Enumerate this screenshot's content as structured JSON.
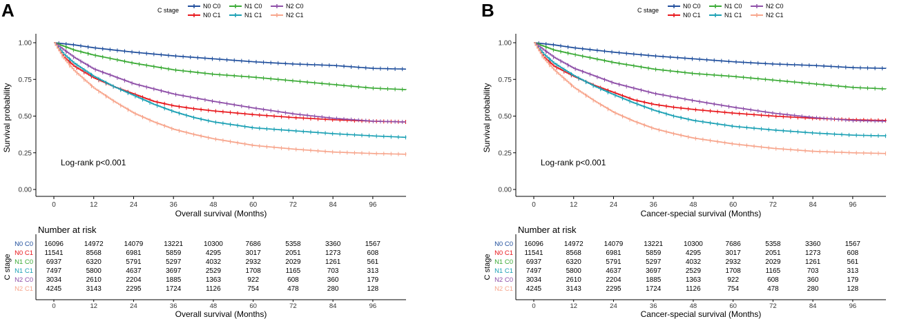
{
  "colors": {
    "N0 C0": "#1f4e9c",
    "N0 C1": "#e8161b",
    "N1 C0": "#3aaa35",
    "N1 C1": "#1aa0b4",
    "N2 C0": "#8e4fa8",
    "N2 C1": "#f7a58c"
  },
  "legend": {
    "title": "C stage",
    "labels": [
      "N0 C0",
      "N1 C0",
      "N2 C0",
      "N0 C1",
      "N1 C1",
      "N2 C1"
    ]
  },
  "chart_data": [
    {
      "type": "line",
      "panel_letter": "A",
      "title": "",
      "xlabel": "Overall survival (Months)",
      "ylabel": "Survival probability",
      "xlim": [
        0,
        106
      ],
      "ylim": [
        0,
        1
      ],
      "x_ticks": [
        0,
        12,
        24,
        36,
        48,
        60,
        72,
        84,
        96
      ],
      "y_ticks": [
        "0.00",
        "0.25",
        "0.50",
        "0.75",
        "1.00"
      ],
      "annotation": "Log-rank p<0.001",
      "series": [
        {
          "name": "N0 C0",
          "x": [
            0,
            6,
            12,
            24,
            36,
            48,
            60,
            72,
            84,
            96,
            106
          ],
          "values": [
            1.0,
            0.985,
            0.965,
            0.935,
            0.91,
            0.89,
            0.87,
            0.855,
            0.845,
            0.825,
            0.82
          ]
        },
        {
          "name": "N0 C1",
          "x": [
            0,
            3,
            6,
            12,
            18,
            24,
            30,
            36,
            42,
            48,
            60,
            72,
            84,
            96,
            106
          ],
          "values": [
            1.0,
            0.9,
            0.84,
            0.76,
            0.7,
            0.65,
            0.6,
            0.57,
            0.55,
            0.535,
            0.51,
            0.49,
            0.475,
            0.465,
            0.46
          ]
        },
        {
          "name": "N1 C0",
          "x": [
            0,
            6,
            12,
            24,
            36,
            48,
            60,
            72,
            84,
            96,
            106
          ],
          "values": [
            1.0,
            0.95,
            0.915,
            0.86,
            0.815,
            0.785,
            0.765,
            0.74,
            0.715,
            0.69,
            0.68
          ]
        },
        {
          "name": "N1 C1",
          "x": [
            0,
            3,
            6,
            12,
            18,
            24,
            30,
            36,
            42,
            48,
            60,
            72,
            84,
            96,
            106
          ],
          "values": [
            1.0,
            0.92,
            0.86,
            0.77,
            0.7,
            0.64,
            0.58,
            0.53,
            0.49,
            0.46,
            0.42,
            0.4,
            0.38,
            0.365,
            0.355
          ]
        },
        {
          "name": "N2 C0",
          "x": [
            0,
            6,
            12,
            24,
            36,
            48,
            60,
            72,
            84,
            96,
            106
          ],
          "values": [
            1.0,
            0.9,
            0.82,
            0.72,
            0.65,
            0.6,
            0.555,
            0.515,
            0.485,
            0.465,
            0.46
          ]
        },
        {
          "name": "N2 C1",
          "x": [
            0,
            3,
            6,
            12,
            18,
            24,
            30,
            36,
            42,
            48,
            60,
            72,
            84,
            96,
            106
          ],
          "values": [
            1.0,
            0.89,
            0.81,
            0.69,
            0.6,
            0.52,
            0.46,
            0.41,
            0.375,
            0.345,
            0.3,
            0.275,
            0.255,
            0.245,
            0.24
          ]
        }
      ],
      "risk_table": {
        "title": "Number at risk",
        "ylabel": "C stage",
        "xlabel": "Overall survival (Months)",
        "rows": [
          {
            "name": "N0 C0",
            "values": [
              "16096",
              "14972",
              "14079",
              "13221",
              "10300",
              "7686",
              "5358",
              "3360",
              "1567"
            ]
          },
          {
            "name": "N0 C1",
            "values": [
              "11541",
              "8568",
              "6981",
              "5859",
              "4295",
              "3017",
              "2051",
              "1273",
              "608"
            ]
          },
          {
            "name": "N1 C0",
            "values": [
              "6937",
              "6320",
              "5791",
              "5297",
              "4032",
              "2932",
              "2029",
              "1261",
              "561"
            ]
          },
          {
            "name": "N1 C1",
            "values": [
              "7497",
              "5800",
              "4637",
              "3697",
              "2529",
              "1708",
              "1165",
              "703",
              "313"
            ]
          },
          {
            "name": "N2 C0",
            "values": [
              "3034",
              "2610",
              "2204",
              "1885",
              "1363",
              "922",
              "608",
              "360",
              "179"
            ]
          },
          {
            "name": "N2 C1",
            "values": [
              "4245",
              "3143",
              "2295",
              "1724",
              "1126",
              "754",
              "478",
              "280",
              "128"
            ]
          }
        ]
      }
    },
    {
      "type": "line",
      "panel_letter": "B",
      "title": "",
      "xlabel": "Cancer-special survival (Months)",
      "ylabel": "Survival probability",
      "xlim": [
        0,
        106
      ],
      "ylim": [
        0,
        1
      ],
      "x_ticks": [
        0,
        12,
        24,
        36,
        48,
        60,
        72,
        84,
        96
      ],
      "y_ticks": [
        "0.00",
        "0.25",
        "0.50",
        "0.75",
        "1.00"
      ],
      "annotation": "Log-rank p<0.001",
      "series": [
        {
          "name": "N0 C0",
          "x": [
            0,
            6,
            12,
            24,
            36,
            48,
            60,
            72,
            84,
            96,
            106
          ],
          "values": [
            1.0,
            0.985,
            0.965,
            0.935,
            0.91,
            0.89,
            0.87,
            0.855,
            0.845,
            0.83,
            0.825
          ]
        },
        {
          "name": "N0 C1",
          "x": [
            0,
            3,
            6,
            12,
            18,
            24,
            30,
            36,
            42,
            48,
            60,
            72,
            84,
            96,
            106
          ],
          "values": [
            1.0,
            0.9,
            0.84,
            0.77,
            0.71,
            0.66,
            0.61,
            0.58,
            0.56,
            0.545,
            0.52,
            0.5,
            0.485,
            0.475,
            0.47
          ]
        },
        {
          "name": "N1 C0",
          "x": [
            0,
            6,
            12,
            24,
            36,
            48,
            60,
            72,
            84,
            96,
            106
          ],
          "values": [
            1.0,
            0.95,
            0.92,
            0.865,
            0.82,
            0.79,
            0.77,
            0.745,
            0.72,
            0.695,
            0.685
          ]
        },
        {
          "name": "N1 C1",
          "x": [
            0,
            3,
            6,
            12,
            18,
            24,
            30,
            36,
            42,
            48,
            60,
            72,
            84,
            96,
            106
          ],
          "values": [
            1.0,
            0.92,
            0.86,
            0.775,
            0.705,
            0.645,
            0.59,
            0.54,
            0.5,
            0.47,
            0.43,
            0.405,
            0.385,
            0.37,
            0.365
          ]
        },
        {
          "name": "N2 C0",
          "x": [
            0,
            6,
            12,
            24,
            36,
            48,
            60,
            72,
            84,
            96,
            106
          ],
          "values": [
            1.0,
            0.9,
            0.825,
            0.725,
            0.655,
            0.605,
            0.56,
            0.52,
            0.49,
            0.47,
            0.465
          ]
        },
        {
          "name": "N2 C1",
          "x": [
            0,
            3,
            6,
            12,
            18,
            24,
            30,
            36,
            42,
            48,
            60,
            72,
            84,
            96,
            106
          ],
          "values": [
            1.0,
            0.89,
            0.815,
            0.695,
            0.605,
            0.525,
            0.465,
            0.415,
            0.38,
            0.35,
            0.31,
            0.28,
            0.26,
            0.25,
            0.245
          ]
        }
      ],
      "risk_table": {
        "title": "Number at risk",
        "ylabel": "C stage",
        "xlabel": "Cancer-special survival (Months)",
        "rows": [
          {
            "name": "N0 C0",
            "values": [
              "16096",
              "14972",
              "14079",
              "13221",
              "10300",
              "7686",
              "5358",
              "3360",
              "1567"
            ]
          },
          {
            "name": "N0 C1",
            "values": [
              "11541",
              "8568",
              "6981",
              "5859",
              "4295",
              "3017",
              "2051",
              "1273",
              "608"
            ]
          },
          {
            "name": "N1 C0",
            "values": [
              "6937",
              "6320",
              "5791",
              "5297",
              "4032",
              "2932",
              "2029",
              "1261",
              "561"
            ]
          },
          {
            "name": "N1 C1",
            "values": [
              "7497",
              "5800",
              "4637",
              "3697",
              "2529",
              "1708",
              "1165",
              "703",
              "313"
            ]
          },
          {
            "name": "N2 C0",
            "values": [
              "3034",
              "2610",
              "2204",
              "1885",
              "1363",
              "922",
              "608",
              "360",
              "179"
            ]
          },
          {
            "name": "N2 C1",
            "values": [
              "4245",
              "3143",
              "2295",
              "1724",
              "1126",
              "754",
              "478",
              "280",
              "128"
            ]
          }
        ]
      }
    }
  ]
}
